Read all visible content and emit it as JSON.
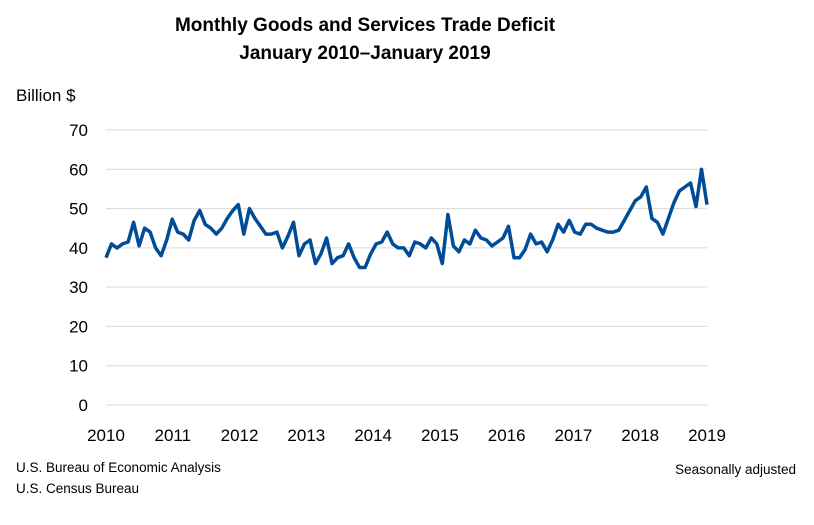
{
  "chart_data": {
    "type": "line",
    "title": "Monthly Goods and Services Trade Deficit",
    "subtitle": "January 2010–January 2019",
    "ylabel": "Billion $",
    "xlabel": "",
    "ylim": [
      0,
      70
    ],
    "yticks": [
      0,
      10,
      20,
      30,
      40,
      50,
      60,
      70
    ],
    "xticks": [
      "2010",
      "2011",
      "2012",
      "2013",
      "2014",
      "2015",
      "2016",
      "2017",
      "2018",
      "2019"
    ],
    "x_start": "2010-01",
    "x_end": "2019-01",
    "frequency": "monthly",
    "grid": true,
    "line_color": "#004C97",
    "series": [
      {
        "values": [
          37.5,
          41,
          40,
          41,
          41.5,
          46.5,
          40.5,
          45,
          44,
          40,
          38,
          42,
          47.3,
          44,
          43.5,
          42,
          47,
          49.5,
          46,
          45,
          43.5,
          45,
          47.5,
          49.5,
          51,
          43.5,
          50,
          47.5,
          45.5,
          43.5,
          43.5,
          44,
          40,
          43,
          46.5,
          38,
          41,
          42,
          36,
          38.5,
          42.5,
          36,
          37.5,
          38,
          41,
          37.5,
          35,
          35,
          38.5,
          41,
          41.5,
          44,
          41,
          40,
          40,
          38,
          41.5,
          41,
          40,
          42.5,
          41,
          36,
          48.5,
          40.5,
          39,
          42,
          41,
          44.5,
          42.5,
          42,
          40.5,
          41.5,
          42.5,
          45.5,
          37.5,
          37.5,
          39.5,
          43.5,
          41,
          41.5,
          39,
          42,
          46,
          44,
          47,
          44,
          43.5,
          46,
          46,
          45,
          44.5,
          44,
          44,
          44.5,
          47,
          49.5,
          52,
          53,
          55.5,
          47.5,
          46.5,
          43.5,
          47.5,
          51.5,
          54.5,
          55.5,
          56.5,
          50.5,
          60,
          51
        ]
      }
    ]
  },
  "sources": [
    "U.S. Bureau of Economic Analysis",
    "U.S. Census Bureau"
  ],
  "note": "Seasonally adjusted"
}
